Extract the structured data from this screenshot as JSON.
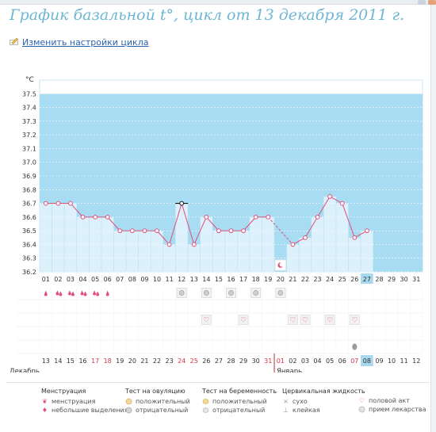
{
  "page": {
    "title": "График базальной t°, цикл от 13 декабря 2011 г.",
    "settings_link": "Изменить настройки цикла"
  },
  "chart_data": {
    "type": "line",
    "ylabel": "°C",
    "ylim": [
      36.2,
      37.6
    ],
    "yticks": [
      "37.5",
      "37.4",
      "37.3",
      "37.2",
      "37.1",
      "37.0",
      "36.9",
      "36.8",
      "36.7",
      "36.6",
      "36.5",
      "36.4",
      "36.3",
      "36.2"
    ],
    "cycle_days": [
      "01",
      "02",
      "03",
      "04",
      "05",
      "06",
      "07",
      "08",
      "09",
      "10",
      "11",
      "12",
      "13",
      "14",
      "15",
      "16",
      "17",
      "18",
      "19",
      "20",
      "21",
      "22",
      "23",
      "24",
      "25",
      "26",
      "27",
      "28",
      "29",
      "30",
      "31"
    ],
    "highlighted_day": "27",
    "temperatures": [
      36.7,
      36.7,
      36.7,
      36.6,
      36.6,
      36.6,
      36.5,
      36.5,
      36.5,
      36.5,
      36.4,
      36.7,
      36.4,
      36.6,
      36.5,
      36.5,
      36.5,
      36.6,
      36.6,
      null,
      36.4,
      36.45,
      36.6,
      36.75,
      36.7,
      36.45,
      36.5,
      null,
      null,
      null,
      null
    ],
    "shaded_from_day": "27",
    "shaded_value": 37.5,
    "selected_point_day": "12",
    "ovulation_event": {
      "day": "20",
      "icon": "moon-icon"
    },
    "menstruation": [
      {
        "day": "01",
        "kind": "spotting"
      },
      {
        "day": "02",
        "kind": "menstruation"
      },
      {
        "day": "03",
        "kind": "menstruation"
      },
      {
        "day": "04",
        "kind": "menstruation"
      },
      {
        "day": "05",
        "kind": "menstruation"
      },
      {
        "day": "06",
        "kind": "spotting"
      }
    ],
    "ovulation_tests": [
      {
        "day": "12",
        "result": "negative"
      },
      {
        "day": "14",
        "result": "negative"
      },
      {
        "day": "16",
        "result": "negative"
      },
      {
        "day": "18",
        "result": "negative"
      },
      {
        "day": "20",
        "result": "negative"
      }
    ],
    "intercourse_days": [
      "14",
      "17",
      "21",
      "22",
      "24",
      "26"
    ],
    "medication_days": [
      "26"
    ],
    "calendar_dates": [
      "13",
      "14",
      "15",
      "16",
      "17",
      "18",
      "19",
      "20",
      "21",
      "22",
      "23",
      "24",
      "25",
      "26",
      "27",
      "28",
      "29",
      "30",
      "31",
      "01",
      "02",
      "03",
      "04",
      "05",
      "06",
      "07",
      "08",
      "09",
      "10",
      "11",
      "12"
    ],
    "red_dates": [
      "17",
      "18",
      "24",
      "25",
      "31",
      "01",
      "07"
    ],
    "highlighted_date": "08",
    "month_dec": "Декабрь",
    "month_jan": "Январь",
    "month_break_index": 19
  },
  "legend": {
    "menstruation": {
      "title": "Менструация",
      "items": [
        "менструация",
        "небольшие выделения"
      ]
    },
    "ovulation_test": {
      "title": "Тест на овуляцию",
      "items": [
        "положительный",
        "отрицательный"
      ]
    },
    "pregnancy_test": {
      "title": "Тест на беременность",
      "items": [
        "положительный",
        "отрицательный"
      ]
    },
    "cervical": {
      "title": "Цервикальная жидкость",
      "items": [
        "сухо",
        "клейкая"
      ]
    },
    "other": {
      "items": [
        "половой акт",
        "прием лекарства"
      ]
    }
  },
  "colors": {
    "title": "#6eb6d2",
    "shade": "#a7dcf3",
    "bar": "#dcf1fb",
    "line": "#e0507a",
    "link": "#2a62b0",
    "highlight": "#a8d8ee",
    "holiday": "#d8334a"
  }
}
